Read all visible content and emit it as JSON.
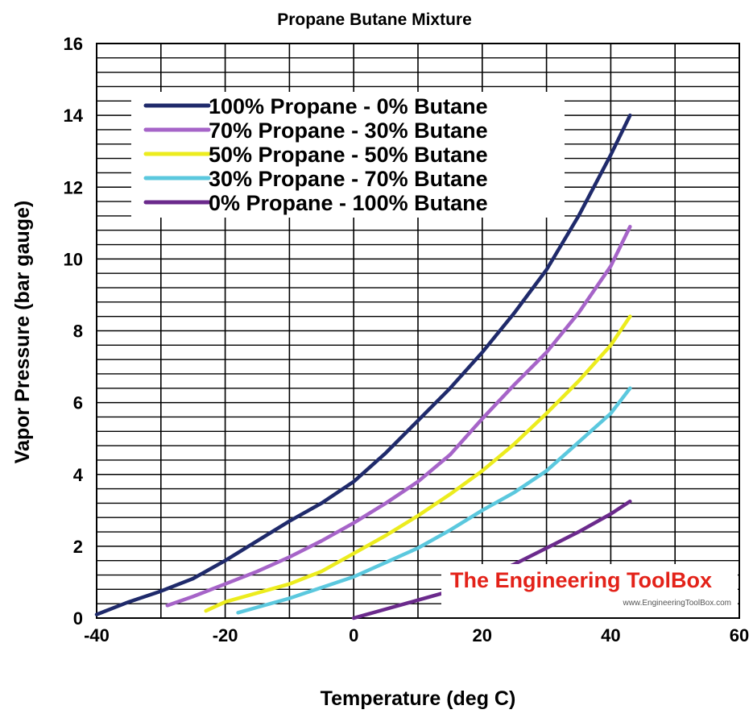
{
  "chart_data": {
    "type": "line",
    "title": "Propane Butane Mixture",
    "xlabel": "Temperature (deg C)",
    "ylabel": "Vapor Pressure (bar gauge)",
    "xlim": [
      -40,
      60
    ],
    "ylim": [
      0,
      16
    ],
    "xticks": [
      -40,
      -20,
      0,
      20,
      40,
      60
    ],
    "yticks": [
      0,
      2,
      4,
      6,
      8,
      10,
      12,
      14,
      16
    ],
    "grid": true,
    "legend_position": "top-left",
    "series": [
      {
        "name": "100% Propane - 0% Butane",
        "color": "#1f2a6b",
        "x": [
          -40,
          -35,
          -30,
          -25,
          -20,
          -15,
          -10,
          -5,
          0,
          5,
          10,
          15,
          20,
          25,
          30,
          35,
          40,
          43
        ],
        "y": [
          0.1,
          0.45,
          0.75,
          1.1,
          1.6,
          2.15,
          2.7,
          3.2,
          3.8,
          4.6,
          5.5,
          6.4,
          7.4,
          8.5,
          9.7,
          11.2,
          12.9,
          14.0
        ]
      },
      {
        "name": "70% Propane - 30% Butane",
        "color": "#a664c8",
        "x": [
          -29,
          -25,
          -20,
          -15,
          -10,
          -5,
          0,
          5,
          10,
          15,
          20,
          25,
          30,
          35,
          40,
          43
        ],
        "y": [
          0.35,
          0.6,
          0.95,
          1.3,
          1.7,
          2.15,
          2.65,
          3.2,
          3.8,
          4.55,
          5.55,
          6.5,
          7.4,
          8.5,
          9.8,
          10.9
        ]
      },
      {
        "name": "50% Propane - 50% Butane",
        "color": "#ecec1e",
        "x": [
          -23,
          -20,
          -15,
          -10,
          -5,
          0,
          5,
          10,
          15,
          20,
          25,
          30,
          35,
          40,
          43
        ],
        "y": [
          0.2,
          0.45,
          0.7,
          0.95,
          1.3,
          1.8,
          2.3,
          2.85,
          3.45,
          4.1,
          4.85,
          5.7,
          6.6,
          7.6,
          8.4
        ]
      },
      {
        "name": "30% Propane - 70% Butane",
        "color": "#5bc8de",
        "x": [
          -18,
          -15,
          -10,
          -5,
          0,
          5,
          10,
          15,
          20,
          25,
          30,
          35,
          40,
          43
        ],
        "y": [
          0.15,
          0.3,
          0.55,
          0.85,
          1.15,
          1.55,
          1.95,
          2.45,
          3.0,
          3.5,
          4.1,
          4.9,
          5.7,
          6.4
        ]
      },
      {
        "name": "0% Propane - 100% Butane",
        "color": "#6b2a8c",
        "x": [
          0,
          5,
          10,
          15,
          20,
          25,
          30,
          35,
          40,
          43
        ],
        "y": [
          0.0,
          0.25,
          0.5,
          0.75,
          1.1,
          1.5,
          1.95,
          2.4,
          2.9,
          3.25
        ]
      }
    ]
  },
  "watermark": {
    "title": "The Engineering ToolBox",
    "url": "www.EngineeringToolBox.com"
  }
}
